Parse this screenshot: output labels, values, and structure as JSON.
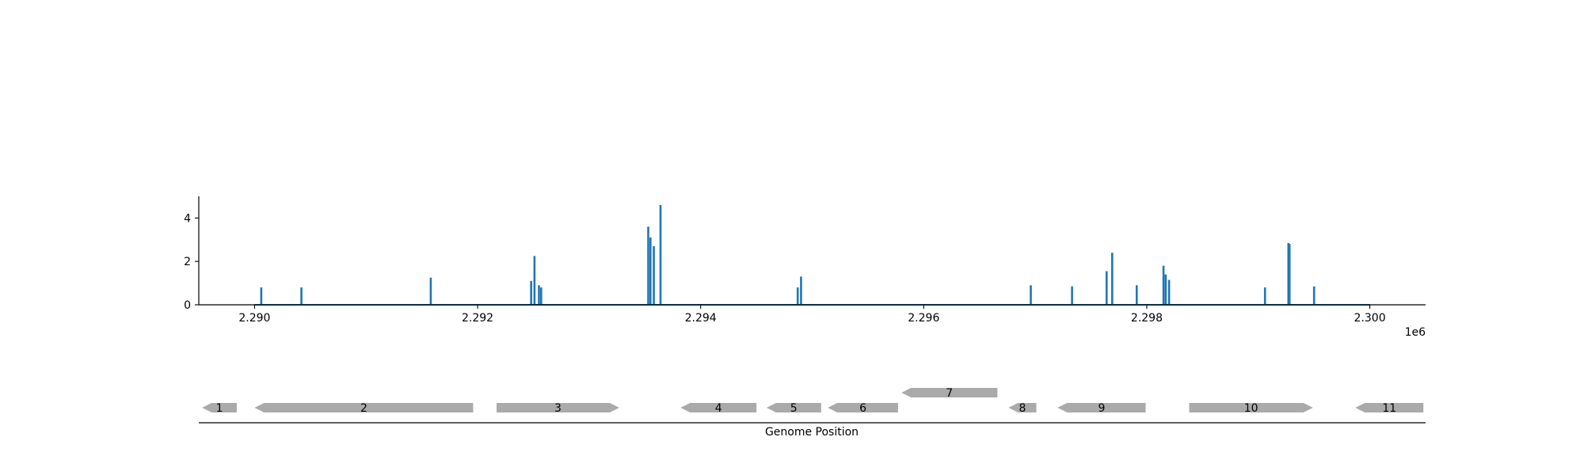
{
  "chart_data": [
    {
      "type": "bar",
      "x_offset_label": "1e6",
      "xlim": [
        2289500,
        2300500
      ],
      "ylim": [
        0,
        5
      ],
      "x_ticks": [
        {
          "value": 2290000,
          "label": "2.290"
        },
        {
          "value": 2292000,
          "label": "2.292"
        },
        {
          "value": 2294000,
          "label": "2.294"
        },
        {
          "value": 2296000,
          "label": "2.296"
        },
        {
          "value": 2298000,
          "label": "2.298"
        },
        {
          "value": 2300000,
          "label": "2.300"
        }
      ],
      "y_ticks": [
        {
          "value": 0,
          "label": "0"
        },
        {
          "value": 2,
          "label": "2"
        },
        {
          "value": 4,
          "label": "4"
        }
      ],
      "baseline_range": [
        2290000,
        2300000
      ],
      "points": [
        {
          "x": 2290060,
          "y": 0.8
        },
        {
          "x": 2290420,
          "y": 0.8
        },
        {
          "x": 2291580,
          "y": 1.25
        },
        {
          "x": 2292480,
          "y": 1.1
        },
        {
          "x": 2292510,
          "y": 2.25
        },
        {
          "x": 2292550,
          "y": 0.9
        },
        {
          "x": 2292570,
          "y": 0.8
        },
        {
          "x": 2293530,
          "y": 3.6
        },
        {
          "x": 2293550,
          "y": 3.1
        },
        {
          "x": 2293580,
          "y": 2.7
        },
        {
          "x": 2293640,
          "y": 4.6
        },
        {
          "x": 2294870,
          "y": 0.8
        },
        {
          "x": 2294900,
          "y": 1.3
        },
        {
          "x": 2296960,
          "y": 0.9
        },
        {
          "x": 2297330,
          "y": 0.85
        },
        {
          "x": 2297640,
          "y": 1.55
        },
        {
          "x": 2297690,
          "y": 2.4
        },
        {
          "x": 2297910,
          "y": 0.9
        },
        {
          "x": 2298150,
          "y": 1.8
        },
        {
          "x": 2298170,
          "y": 1.4
        },
        {
          "x": 2298200,
          "y": 1.15
        },
        {
          "x": 2299060,
          "y": 0.8
        },
        {
          "x": 2299270,
          "y": 2.85
        },
        {
          "x": 2299280,
          "y": 2.8
        },
        {
          "x": 2299500,
          "y": 0.85
        }
      ],
      "color": "#1f77b4"
    },
    {
      "type": "gene-map",
      "xlabel": "Genome Position",
      "color": "#aaaaaa",
      "genes": [
        {
          "label": "1",
          "start": 2289530,
          "end": 2289840,
          "strand": "-",
          "row": 0
        },
        {
          "label": "2",
          "start": 2290000,
          "end": 2291960,
          "strand": "-",
          "row": 0
        },
        {
          "label": "3",
          "start": 2292170,
          "end": 2293270,
          "strand": "+",
          "row": 0
        },
        {
          "label": "4",
          "start": 2293820,
          "end": 2294500,
          "strand": "-",
          "row": 0
        },
        {
          "label": "5",
          "start": 2294590,
          "end": 2295080,
          "strand": "-",
          "row": 0
        },
        {
          "label": "6",
          "start": 2295140,
          "end": 2295770,
          "strand": "-",
          "row": 0
        },
        {
          "label": "7",
          "start": 2295800,
          "end": 2296660,
          "strand": "-",
          "row": 1
        },
        {
          "label": "8",
          "start": 2296760,
          "end": 2297010,
          "strand": "-",
          "row": 0
        },
        {
          "label": "9",
          "start": 2297200,
          "end": 2297990,
          "strand": "-",
          "row": 0
        },
        {
          "label": "10",
          "start": 2298380,
          "end": 2299490,
          "strand": "+",
          "row": 0
        },
        {
          "label": "11",
          "start": 2299870,
          "end": 2300480,
          "strand": "-",
          "row": 0
        }
      ]
    }
  ]
}
